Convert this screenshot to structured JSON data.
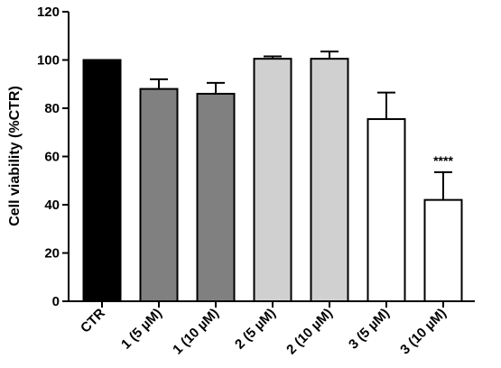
{
  "chart_data": {
    "type": "bar",
    "title": "",
    "xlabel": "",
    "ylabel": "Cell viability (%CTR)",
    "ylim": [
      0,
      120
    ],
    "yticks": [
      0,
      20,
      40,
      60,
      80,
      100,
      120
    ],
    "grid": false,
    "categories": [
      "CTR",
      "1 (5 µM)",
      "1 (10 µM)",
      "2 (5 µM)",
      "2 (10 µM)",
      "3 (5 µM)",
      "3 (10 µM)"
    ],
    "values": [
      100,
      88,
      86,
      100.5,
      100.5,
      75.5,
      42
    ],
    "error_upper": [
      0,
      4,
      4.5,
      1,
      3,
      11,
      11.5
    ],
    "bar_colors": [
      "#000000",
      "#808080",
      "#808080",
      "#d0d0d0",
      "#d0d0d0",
      "#ffffff",
      "#ffffff"
    ],
    "annotations": [
      {
        "category": "3 (10 µM)",
        "text": "****"
      }
    ]
  }
}
